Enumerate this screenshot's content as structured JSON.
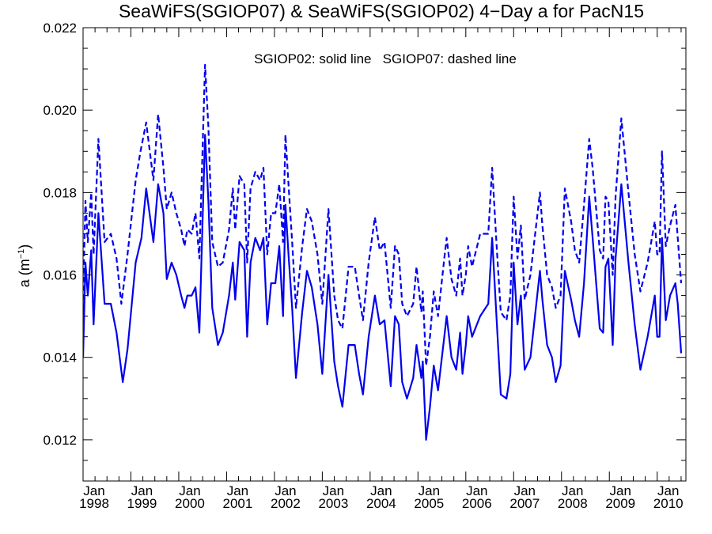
{
  "chart_data": {
    "type": "line",
    "title": "SeaWiFS(SGIOP07) & SeaWiFS(SGIOP02) 4−Day a for PacN15",
    "annotation": "SGIOP02: solid line   SGIOP07: dashed line",
    "ylabel": "a (m",
    "ylabel_sup": "−1",
    "ylabel_close": ")",
    "ylim": [
      0.011,
      0.022
    ],
    "xlim": [
      1998.0,
      2010.6
    ],
    "yticks": [
      0.012,
      0.014,
      0.016,
      0.018,
      0.02,
      0.022
    ],
    "ytick_labels": [
      "0.012",
      "0.014",
      "0.016",
      "0.018",
      "0.020",
      "0.022"
    ],
    "xticks_major": [
      {
        "month": "Jan",
        "year": "1998",
        "x": 1998
      },
      {
        "month": "Jan",
        "year": "1999",
        "x": 1999
      },
      {
        "month": "Jan",
        "year": "2000",
        "x": 2000
      },
      {
        "month": "Jan",
        "year": "2001",
        "x": 2001
      },
      {
        "month": "Jan",
        "year": "2002",
        "x": 2002
      },
      {
        "month": "Jan",
        "year": "2003",
        "x": 2003
      },
      {
        "month": "Jan",
        "year": "2004",
        "x": 2004
      },
      {
        "month": "Jan",
        "year": "2005",
        "x": 2005
      },
      {
        "month": "Jan",
        "year": "2006",
        "x": 2006
      },
      {
        "month": "Jan",
        "year": "2007",
        "x": 2007
      },
      {
        "month": "Jan",
        "year": "2008",
        "x": 2008
      },
      {
        "month": "Jan",
        "year": "2009",
        "x": 2009
      },
      {
        "month": "Jan",
        "year": "2010",
        "x": 2010
      }
    ],
    "grid": false,
    "line_color": "#0000ee",
    "series": [
      {
        "name": "SGIOP02",
        "style": "solid",
        "points": [
          [
            1998.0,
            0.014
          ],
          [
            1998.05,
            0.0163
          ],
          [
            1998.1,
            0.0155
          ],
          [
            1998.17,
            0.0166
          ],
          [
            1998.22,
            0.0148
          ],
          [
            1998.32,
            0.0175
          ],
          [
            1998.45,
            0.0153
          ],
          [
            1998.58,
            0.0153
          ],
          [
            1998.7,
            0.0146
          ],
          [
            1998.83,
            0.0134
          ],
          [
            1998.93,
            0.0142
          ],
          [
            1999.1,
            0.0163
          ],
          [
            1999.22,
            0.0169
          ],
          [
            1999.32,
            0.0181
          ],
          [
            1999.47,
            0.0168
          ],
          [
            1999.57,
            0.0182
          ],
          [
            1999.68,
            0.0175
          ],
          [
            1999.75,
            0.0159
          ],
          [
            1999.85,
            0.0163
          ],
          [
            1999.95,
            0.016
          ],
          [
            2000.05,
            0.0155
          ],
          [
            2000.12,
            0.0152
          ],
          [
            2000.18,
            0.0155
          ],
          [
            2000.27,
            0.0155
          ],
          [
            2000.35,
            0.0157
          ],
          [
            2000.43,
            0.0146
          ],
          [
            2000.55,
            0.0194
          ],
          [
            2000.62,
            0.0178
          ],
          [
            2000.7,
            0.0152
          ],
          [
            2000.82,
            0.0143
          ],
          [
            2000.92,
            0.0146
          ],
          [
            2001.05,
            0.0155
          ],
          [
            2001.13,
            0.0163
          ],
          [
            2001.18,
            0.0154
          ],
          [
            2001.27,
            0.0168
          ],
          [
            2001.37,
            0.0166
          ],
          [
            2001.43,
            0.0145
          ],
          [
            2001.5,
            0.0163
          ],
          [
            2001.6,
            0.0169
          ],
          [
            2001.7,
            0.0166
          ],
          [
            2001.77,
            0.0169
          ],
          [
            2001.85,
            0.0148
          ],
          [
            2001.93,
            0.0158
          ],
          [
            2002.02,
            0.0158
          ],
          [
            2002.1,
            0.0167
          ],
          [
            2002.18,
            0.015
          ],
          [
            2002.23,
            0.0177
          ],
          [
            2002.3,
            0.0164
          ],
          [
            2002.37,
            0.0152
          ],
          [
            2002.45,
            0.0135
          ],
          [
            2002.58,
            0.0151
          ],
          [
            2002.68,
            0.0161
          ],
          [
            2002.78,
            0.0157
          ],
          [
            2002.9,
            0.0148
          ],
          [
            2003.0,
            0.0136
          ],
          [
            2003.13,
            0.016
          ],
          [
            2003.25,
            0.0139
          ],
          [
            2003.33,
            0.0133
          ],
          [
            2003.42,
            0.0128
          ],
          [
            2003.55,
            0.0143
          ],
          [
            2003.68,
            0.0143
          ],
          [
            2003.77,
            0.0136
          ],
          [
            2003.85,
            0.0131
          ],
          [
            2003.97,
            0.0145
          ],
          [
            2004.1,
            0.0155
          ],
          [
            2004.2,
            0.0148
          ],
          [
            2004.3,
            0.0149
          ],
          [
            2004.43,
            0.0133
          ],
          [
            2004.52,
            0.015
          ],
          [
            2004.6,
            0.0148
          ],
          [
            2004.67,
            0.0134
          ],
          [
            2004.77,
            0.013
          ],
          [
            2004.9,
            0.0135
          ],
          [
            2004.97,
            0.0143
          ],
          [
            2005.07,
            0.0135
          ],
          [
            2005.1,
            0.0139
          ],
          [
            2005.17,
            0.012
          ],
          [
            2005.25,
            0.0128
          ],
          [
            2005.33,
            0.0138
          ],
          [
            2005.42,
            0.0132
          ],
          [
            2005.55,
            0.0145
          ],
          [
            2005.6,
            0.015
          ],
          [
            2005.7,
            0.014
          ],
          [
            2005.8,
            0.0137
          ],
          [
            2005.88,
            0.0146
          ],
          [
            2005.93,
            0.0136
          ],
          [
            2006.0,
            0.0143
          ],
          [
            2006.05,
            0.015
          ],
          [
            2006.13,
            0.0145
          ],
          [
            2006.3,
            0.015
          ],
          [
            2006.47,
            0.0153
          ],
          [
            2006.55,
            0.0169
          ],
          [
            2006.65,
            0.0148
          ],
          [
            2006.73,
            0.0131
          ],
          [
            2006.85,
            0.013
          ],
          [
            2006.93,
            0.0136
          ],
          [
            2007.0,
            0.0163
          ],
          [
            2007.08,
            0.0148
          ],
          [
            2007.15,
            0.0155
          ],
          [
            2007.23,
            0.0137
          ],
          [
            2007.35,
            0.014
          ],
          [
            2007.55,
            0.0161
          ],
          [
            2007.6,
            0.0154
          ],
          [
            2007.7,
            0.0143
          ],
          [
            2007.8,
            0.014
          ],
          [
            2007.88,
            0.0134
          ],
          [
            2007.98,
            0.0138
          ],
          [
            2008.07,
            0.0161
          ],
          [
            2008.2,
            0.0154
          ],
          [
            2008.28,
            0.0149
          ],
          [
            2008.37,
            0.0145
          ],
          [
            2008.47,
            0.0158
          ],
          [
            2008.58,
            0.0179
          ],
          [
            2008.65,
            0.0169
          ],
          [
            2008.8,
            0.0147
          ],
          [
            2008.87,
            0.0146
          ],
          [
            2008.92,
            0.0162
          ],
          [
            2008.98,
            0.0164
          ],
          [
            2009.07,
            0.0143
          ],
          [
            2009.13,
            0.0164
          ],
          [
            2009.25,
            0.0182
          ],
          [
            2009.4,
            0.0163
          ],
          [
            2009.53,
            0.0148
          ],
          [
            2009.65,
            0.0137
          ],
          [
            2009.8,
            0.0145
          ],
          [
            2009.95,
            0.0155
          ],
          [
            2010.0,
            0.0145
          ],
          [
            2010.05,
            0.0145
          ],
          [
            2010.1,
            0.0169
          ],
          [
            2010.18,
            0.0149
          ],
          [
            2010.27,
            0.0155
          ],
          [
            2010.38,
            0.0158
          ],
          [
            2010.43,
            0.0153
          ],
          [
            2010.5,
            0.0141
          ]
        ]
      },
      {
        "name": "SGIOP07",
        "style": "dashed",
        "points": [
          [
            1998.0,
            0.0154
          ],
          [
            1998.05,
            0.0178
          ],
          [
            1998.1,
            0.0168
          ],
          [
            1998.17,
            0.018
          ],
          [
            1998.22,
            0.0165
          ],
          [
            1998.32,
            0.0193
          ],
          [
            1998.45,
            0.0168
          ],
          [
            1998.58,
            0.017
          ],
          [
            1998.7,
            0.0164
          ],
          [
            1998.8,
            0.0153
          ],
          [
            1998.93,
            0.0165
          ],
          [
            1999.1,
            0.0183
          ],
          [
            1999.2,
            0.019
          ],
          [
            1999.32,
            0.0197
          ],
          [
            1999.47,
            0.0183
          ],
          [
            1999.57,
            0.0199
          ],
          [
            1999.68,
            0.0186
          ],
          [
            1999.75,
            0.0176
          ],
          [
            1999.85,
            0.018
          ],
          [
            1999.95,
            0.0175
          ],
          [
            2000.05,
            0.0171
          ],
          [
            2000.12,
            0.0167
          ],
          [
            2000.18,
            0.0171
          ],
          [
            2000.27,
            0.017
          ],
          [
            2000.35,
            0.0175
          ],
          [
            2000.43,
            0.0164
          ],
          [
            2000.55,
            0.0211
          ],
          [
            2000.62,
            0.0196
          ],
          [
            2000.7,
            0.0168
          ],
          [
            2000.82,
            0.0162
          ],
          [
            2000.92,
            0.0163
          ],
          [
            2001.05,
            0.0171
          ],
          [
            2001.13,
            0.0181
          ],
          [
            2001.18,
            0.0171
          ],
          [
            2001.27,
            0.0184
          ],
          [
            2001.37,
            0.0182
          ],
          [
            2001.43,
            0.0163
          ],
          [
            2001.5,
            0.0181
          ],
          [
            2001.6,
            0.0185
          ],
          [
            2001.7,
            0.0183
          ],
          [
            2001.77,
            0.0186
          ],
          [
            2001.85,
            0.0165
          ],
          [
            2001.93,
            0.0175
          ],
          [
            2002.02,
            0.0175
          ],
          [
            2002.1,
            0.0182
          ],
          [
            2002.18,
            0.0168
          ],
          [
            2002.23,
            0.0194
          ],
          [
            2002.3,
            0.0181
          ],
          [
            2002.37,
            0.0168
          ],
          [
            2002.45,
            0.0152
          ],
          [
            2002.58,
            0.0167
          ],
          [
            2002.68,
            0.0176
          ],
          [
            2002.78,
            0.0173
          ],
          [
            2002.9,
            0.0165
          ],
          [
            2003.0,
            0.0153
          ],
          [
            2003.13,
            0.0176
          ],
          [
            2003.25,
            0.0155
          ],
          [
            2003.33,
            0.0149
          ],
          [
            2003.42,
            0.0147
          ],
          [
            2003.55,
            0.0162
          ],
          [
            2003.68,
            0.0162
          ],
          [
            2003.77,
            0.0155
          ],
          [
            2003.85,
            0.0149
          ],
          [
            2003.97,
            0.0163
          ],
          [
            2004.1,
            0.0174
          ],
          [
            2004.2,
            0.0166
          ],
          [
            2004.3,
            0.0168
          ],
          [
            2004.43,
            0.0152
          ],
          [
            2004.52,
            0.0167
          ],
          [
            2004.6,
            0.0165
          ],
          [
            2004.67,
            0.0153
          ],
          [
            2004.77,
            0.015
          ],
          [
            2004.9,
            0.0153
          ],
          [
            2004.97,
            0.0162
          ],
          [
            2005.07,
            0.0151
          ],
          [
            2005.1,
            0.0156
          ],
          [
            2005.17,
            0.0138
          ],
          [
            2005.25,
            0.0145
          ],
          [
            2005.33,
            0.0156
          ],
          [
            2005.42,
            0.015
          ],
          [
            2005.55,
            0.0164
          ],
          [
            2005.6,
            0.0169
          ],
          [
            2005.7,
            0.0159
          ],
          [
            2005.8,
            0.0155
          ],
          [
            2005.88,
            0.0164
          ],
          [
            2005.93,
            0.0155
          ],
          [
            2006.0,
            0.016
          ],
          [
            2006.05,
            0.0167
          ],
          [
            2006.13,
            0.0162
          ],
          [
            2006.3,
            0.017
          ],
          [
            2006.47,
            0.017
          ],
          [
            2006.55,
            0.0186
          ],
          [
            2006.65,
            0.0166
          ],
          [
            2006.73,
            0.0151
          ],
          [
            2006.85,
            0.0149
          ],
          [
            2006.93,
            0.0155
          ],
          [
            2007.0,
            0.0179
          ],
          [
            2007.08,
            0.0164
          ],
          [
            2007.15,
            0.0172
          ],
          [
            2007.23,
            0.0154
          ],
          [
            2007.35,
            0.016
          ],
          [
            2007.55,
            0.018
          ],
          [
            2007.6,
            0.0172
          ],
          [
            2007.7,
            0.016
          ],
          [
            2007.8,
            0.0157
          ],
          [
            2007.88,
            0.0152
          ],
          [
            2007.98,
            0.0155
          ],
          [
            2008.07,
            0.0181
          ],
          [
            2008.2,
            0.0173
          ],
          [
            2008.28,
            0.0166
          ],
          [
            2008.37,
            0.0163
          ],
          [
            2008.47,
            0.0177
          ],
          [
            2008.58,
            0.0193
          ],
          [
            2008.65,
            0.0186
          ],
          [
            2008.8,
            0.0166
          ],
          [
            2008.87,
            0.0164
          ],
          [
            2008.92,
            0.0179
          ],
          [
            2008.98,
            0.0178
          ],
          [
            2009.07,
            0.016
          ],
          [
            2009.13,
            0.0179
          ],
          [
            2009.25,
            0.0198
          ],
          [
            2009.4,
            0.018
          ],
          [
            2009.53,
            0.0165
          ],
          [
            2009.65,
            0.0156
          ],
          [
            2009.8,
            0.0163
          ],
          [
            2009.95,
            0.0173
          ],
          [
            2010.0,
            0.0165
          ],
          [
            2010.05,
            0.0165
          ],
          [
            2010.1,
            0.019
          ],
          [
            2010.18,
            0.0167
          ],
          [
            2010.27,
            0.0172
          ],
          [
            2010.38,
            0.0177
          ],
          [
            2010.43,
            0.0169
          ],
          [
            2010.5,
            0.0158
          ]
        ]
      }
    ]
  }
}
